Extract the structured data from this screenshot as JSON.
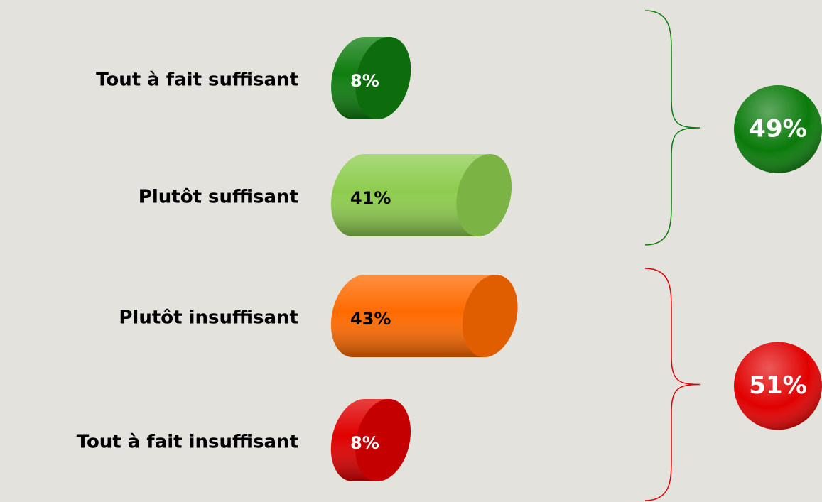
{
  "chart_data": {
    "type": "bar",
    "categories": [
      "Tout à fait suffisant",
      "Plutôt suffisant",
      "Plutôt insuffisant",
      "Tout à fait insuffisant"
    ],
    "values": [
      8,
      41,
      43,
      8
    ],
    "value_labels": [
      "8%",
      "41%",
      "43%",
      "8%"
    ],
    "colors": [
      "#0f7d0f",
      "#8dcc4e",
      "#ff6a00",
      "#e00000"
    ],
    "label_colors": [
      "#ffffff",
      "#000000",
      "#000000",
      "#ffffff"
    ],
    "groups": [
      {
        "value": 49,
        "value_label": "49%",
        "color": "#0a7a0a"
      },
      {
        "value": 51,
        "value_label": "51%",
        "color": "#e00000"
      }
    ]
  }
}
